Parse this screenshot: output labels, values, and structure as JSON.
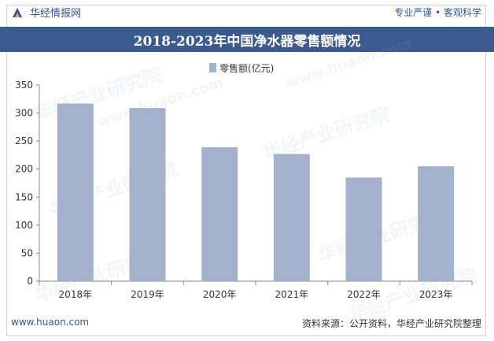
{
  "header": {
    "logo_text": "华经情报网",
    "slogan": "专业严谨 • 客观科学"
  },
  "chart_data": {
    "type": "bar",
    "title": "2018-2023年中国净水器零售额情况",
    "categories": [
      "2018年",
      "2019年",
      "2020年",
      "2021年",
      "2022年",
      "2023年"
    ],
    "series": [
      {
        "name": "零售额(亿元)",
        "values": [
          317,
          309,
          239,
          227,
          185,
          205
        ],
        "color": "#a3b1cc"
      }
    ],
    "ylim": [
      0,
      350
    ],
    "yticks": [
      0,
      50,
      100,
      150,
      200,
      250,
      300,
      350
    ],
    "xlabel": "",
    "ylabel": "",
    "legend_position": "top-center",
    "grid": false
  },
  "watermark": {
    "text": "华经产业研究院",
    "site": "www.huaon.com"
  },
  "footer": {
    "site": "www.huaon.com",
    "source": "资料来源：公开资料，华经产业研究院整理"
  },
  "colors": {
    "title_bg": "#3b5a8e",
    "brand": "#2f5597",
    "bar": "#a3b1cc"
  }
}
